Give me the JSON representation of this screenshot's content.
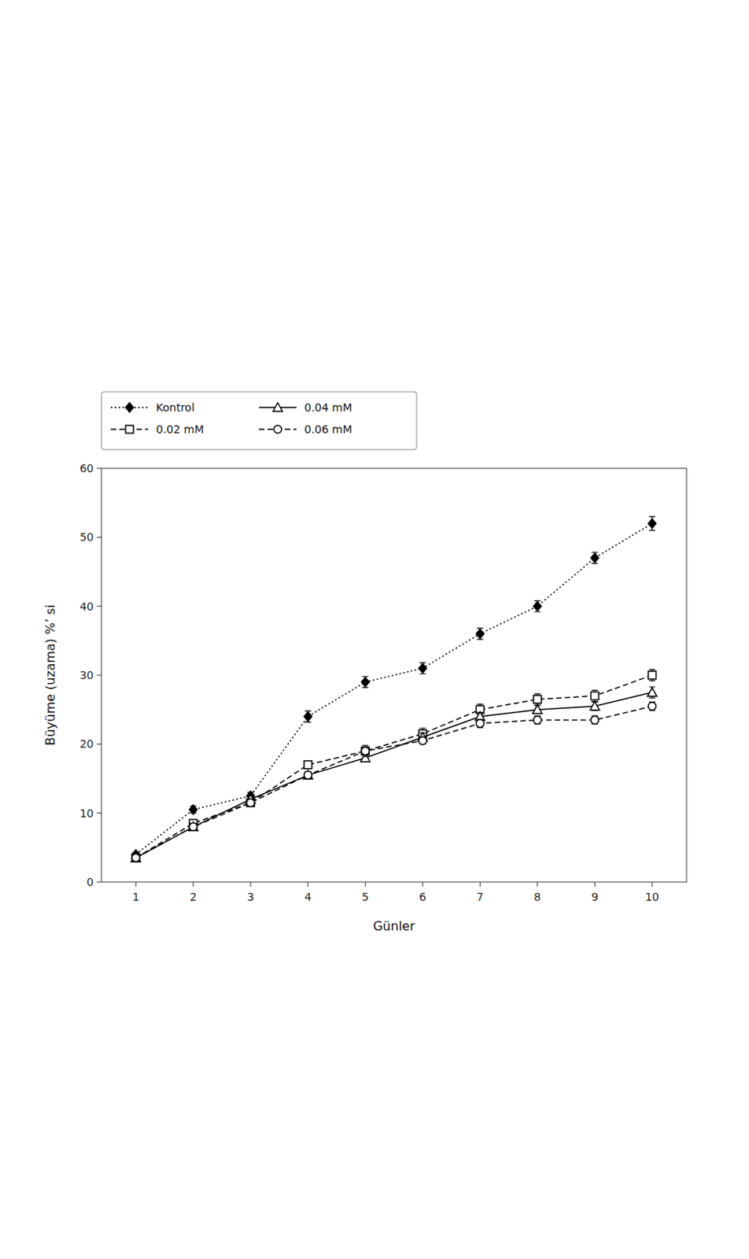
{
  "chart_data": {
    "type": "line",
    "x_label": "Günler",
    "y_label": "Büyüme (uzama) %’ si",
    "x": [
      1,
      2,
      3,
      4,
      5,
      6,
      7,
      8,
      9,
      10
    ],
    "xlim": [
      0.4,
      10.6
    ],
    "xticks": [
      1,
      2,
      3,
      4,
      5,
      6,
      7,
      8,
      9,
      10
    ],
    "ylim": [
      0,
      60
    ],
    "yticks": [
      0,
      10,
      20,
      30,
      40,
      50,
      60
    ],
    "grid": false,
    "legend": "upper left",
    "series": [
      {
        "name": "Kontrol",
        "color": "#000000",
        "marker": "diamond",
        "line_style": "dotted",
        "values": [
          4.0,
          10.5,
          12.5,
          24.0,
          29.0,
          31.0,
          36.0,
          40.0,
          47.0,
          52.0
        ],
        "errors": [
          0.3,
          0.5,
          0.5,
          0.8,
          0.8,
          0.8,
          0.8,
          0.8,
          0.8,
          1.0
        ]
      },
      {
        "name": "0.02 mM",
        "color": "#000000",
        "marker": "square-open",
        "line_style": "dashed",
        "values": [
          3.5,
          8.5,
          11.5,
          17.0,
          19.0,
          21.5,
          25.0,
          26.5,
          27.0,
          30.0
        ],
        "errors": [
          0.3,
          0.5,
          0.5,
          0.5,
          0.5,
          0.8,
          0.8,
          0.8,
          0.8,
          0.8
        ]
      },
      {
        "name": "0.04 mM",
        "color": "#000000",
        "marker": "triangle-open",
        "line_style": "solid",
        "values": [
          3.5,
          8.0,
          12.0,
          15.5,
          18.0,
          21.0,
          24.0,
          25.0,
          25.5,
          27.5
        ],
        "errors": [
          0.3,
          0.5,
          0.5,
          0.5,
          0.5,
          0.6,
          0.6,
          0.6,
          0.6,
          0.8
        ]
      },
      {
        "name": "0.06 mM",
        "color": "#000000",
        "marker": "circle-open",
        "line_style": "dashed",
        "values": [
          3.5,
          8.0,
          11.5,
          15.5,
          19.0,
          20.5,
          23.0,
          23.5,
          23.5,
          25.5
        ],
        "errors": [
          0.3,
          0.5,
          0.5,
          0.5,
          0.8,
          0.5,
          0.6,
          0.6,
          0.6,
          0.6
        ]
      }
    ]
  }
}
